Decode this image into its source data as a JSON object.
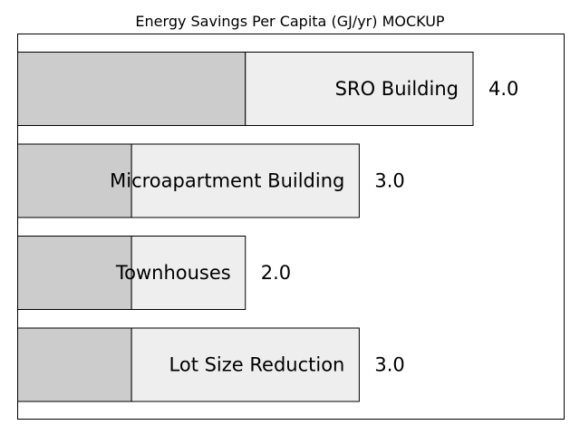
{
  "chart_data": {
    "type": "bar",
    "orientation": "horizontal",
    "stacked": true,
    "title": "Energy Savings Per Capita (GJ/yr) MOCKUP",
    "xlabel": "",
    "ylabel": "",
    "categories": [
      "SRO Building",
      "Microapartment Building",
      "Townhouses",
      "Lot Size Reduction"
    ],
    "series": [
      {
        "color": "#cccccc",
        "values": [
          2.0,
          1.0,
          1.0,
          1.0
        ]
      },
      {
        "color": "#eeeeee",
        "values": [
          2.0,
          2.0,
          1.0,
          2.0
        ]
      }
    ],
    "totals": [
      "4.0",
      "3.0",
      "2.0",
      "3.0"
    ],
    "xlim": [
      0,
      4.8
    ],
    "grid": false,
    "show_ticks": false,
    "edge_color": "#000000"
  }
}
